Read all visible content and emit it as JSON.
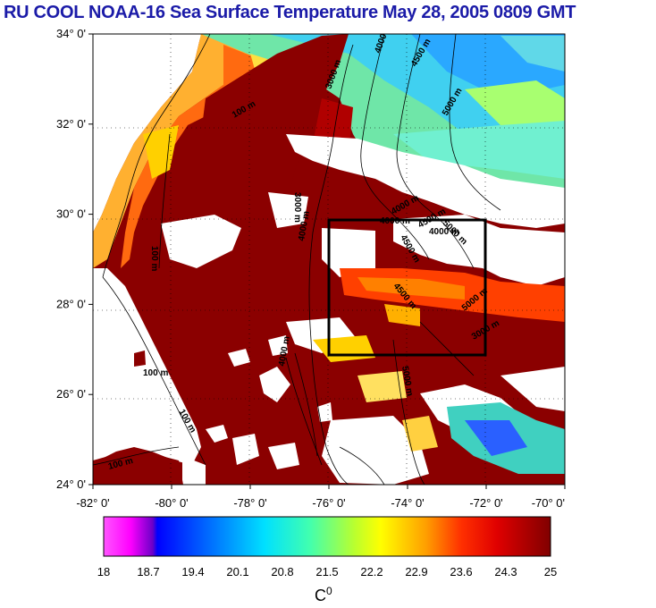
{
  "title": "RU COOL  NOAA-16 Sea Surface Temperature May 28, 2005 0809 GMT",
  "map": {
    "lat_labels": [
      "34° 0'",
      "32° 0'",
      "30° 0'",
      "28° 0'",
      "26° 0'",
      "24° 0'"
    ],
    "lon_labels": [
      "-82° 0'",
      "-80° 0'",
      "-78° 0'",
      "-76° 0'",
      "-74° 0'",
      "-72° 0'",
      "-70° 0'"
    ],
    "lat_range": [
      24,
      34
    ],
    "lon_range": [
      -82,
      -70
    ],
    "study_box": {
      "lon": [
        -76,
        -72
      ],
      "lat": [
        27,
        30
      ]
    },
    "contour_labels": [
      "100 m",
      "100 m",
      "100 m",
      "100 m",
      "100 m",
      "3000 m",
      "4000 m",
      "4500 m",
      "5000 m",
      "4000 m",
      "4500 m",
      "5000 m",
      "4000 m",
      "4500 m",
      "4000 m",
      "4500 m",
      "5000 m",
      "3000 m",
      "4000 m",
      "5000 m",
      "4000 m",
      "3000 m"
    ]
  },
  "colorbar": {
    "ticks": [
      "18",
      "18.7",
      "19.4",
      "20.1",
      "20.8",
      "21.5",
      "22.2",
      "22.9",
      "23.6",
      "24.3",
      "25"
    ],
    "unit": "C",
    "unit_sup": "0",
    "range": [
      18,
      25
    ]
  },
  "colors": {
    "title": "#1b1ba8",
    "land": "#ffffff",
    "cloud": "#ffffff",
    "warm": "#8b0000",
    "box": "#000000"
  }
}
